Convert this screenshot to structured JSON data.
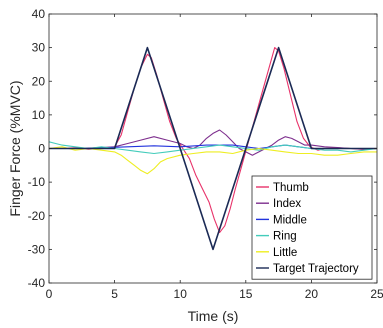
{
  "chart_data": {
    "type": "line",
    "title": "",
    "xlabel": "Time (s)",
    "ylabel": "Finger Force (%MVC)",
    "xlim": [
      0,
      25
    ],
    "ylim": [
      -40,
      40
    ],
    "xticks": [
      0,
      5,
      10,
      15,
      20,
      25
    ],
    "yticks": [
      -40,
      -30,
      -20,
      -10,
      0,
      10,
      20,
      30,
      40
    ],
    "xtick_labels": [
      "0",
      "5",
      "10",
      "15",
      "20",
      "25"
    ],
    "ytick_labels": [
      "-40",
      "-30",
      "-20",
      "-10",
      "0",
      "10",
      "20",
      "30",
      "40"
    ],
    "grid": false,
    "legend_position": "lower-right",
    "series": [
      {
        "name": "Thumb",
        "color": "#e8336a",
        "x": [
          0,
          1,
          2,
          3,
          4,
          5,
          5.5,
          6,
          6.5,
          7,
          7.5,
          7.8,
          8.2,
          8.7,
          9.2,
          9.7,
          10.2,
          10.7,
          11.2,
          11.7,
          12.2,
          12.6,
          13,
          13.4,
          13.8,
          14.2,
          14.7,
          15.2,
          15.7,
          16.2,
          16.7,
          17.2,
          17.5,
          17.9,
          18.4,
          18.9,
          19.4,
          19.9,
          20.5,
          21,
          22,
          23,
          24,
          25
        ],
        "y": [
          0,
          0,
          0.2,
          -0.2,
          0,
          0.5,
          4,
          11,
          18,
          24,
          28,
          27,
          22,
          15,
          8,
          3,
          0,
          -3,
          -8,
          -12,
          -16,
          -21,
          -25,
          -23,
          -18,
          -12,
          -5,
          2,
          9,
          16,
          23,
          30,
          29,
          24,
          16,
          8,
          3,
          0.5,
          -0.5,
          0,
          0.2,
          0,
          -0.3,
          0
        ]
      },
      {
        "name": "Index",
        "color": "#7e2f8e",
        "x": [
          0,
          2,
          4,
          5,
          6,
          7,
          8,
          9,
          10,
          10.5,
          11,
          11.5,
          12,
          12.5,
          13,
          13.5,
          14,
          14.5,
          15,
          15.5,
          16,
          16.5,
          17,
          17.5,
          18,
          18.5,
          19,
          19.5,
          20,
          21,
          22,
          23,
          24,
          25
        ],
        "y": [
          0,
          0,
          0.3,
          0.5,
          1.5,
          2.5,
          3.5,
          2.5,
          1.5,
          0.5,
          0,
          1,
          3,
          4.5,
          5.5,
          4,
          2,
          0,
          -1,
          -2,
          -1,
          0,
          1,
          2.5,
          3.5,
          3,
          2,
          1,
          1,
          0.5,
          0.3,
          0,
          -0.2,
          0
        ]
      },
      {
        "name": "Middle",
        "color": "#2233dd",
        "x": [
          0,
          2,
          4,
          6,
          8,
          10,
          12,
          14,
          15,
          16,
          17,
          18,
          19,
          20,
          22,
          25
        ],
        "y": [
          0,
          0,
          0.2,
          0.5,
          0.8,
          0.5,
          1,
          1,
          0.5,
          0,
          0.5,
          1,
          0.5,
          0,
          0,
          0
        ]
      },
      {
        "name": "Ring",
        "color": "#44ccbb",
        "x": [
          0,
          0.5,
          1,
          2,
          3,
          4,
          5,
          6,
          7,
          8,
          9,
          10,
          11,
          12,
          13,
          14,
          15,
          16,
          17,
          18,
          19,
          20,
          21,
          22,
          23,
          24,
          25
        ],
        "y": [
          2,
          1.5,
          1,
          0.5,
          0,
          0.5,
          0,
          -0.5,
          -1,
          -1.5,
          -1,
          -0.5,
          0,
          0.5,
          1,
          0.5,
          0,
          -0.5,
          0.5,
          1,
          0.5,
          0,
          -0.5,
          -0.5,
          -1,
          -0.5,
          0
        ]
      },
      {
        "name": "Little",
        "color": "#eeee22",
        "x": [
          0,
          1,
          2,
          3,
          4,
          5,
          5.5,
          6,
          6.5,
          7,
          7.5,
          8,
          8.5,
          9,
          10,
          11,
          12,
          13,
          14,
          15,
          16,
          17,
          18,
          19,
          20,
          21,
          22,
          23,
          24,
          25
        ],
        "y": [
          0,
          0.5,
          -0.5,
          0,
          -0.5,
          -1,
          -2,
          -3.5,
          -5,
          -6.5,
          -7.5,
          -6,
          -4,
          -3,
          -2,
          -1.5,
          -1,
          -1,
          -1.5,
          -0.5,
          0,
          -0.5,
          -1,
          -1.5,
          -1.5,
          -2,
          -2,
          -1.5,
          -1,
          -1
        ]
      },
      {
        "name": "Target Trajectory",
        "color": "#1b2a55",
        "x": [
          0,
          5,
          7.5,
          12.5,
          17.5,
          20,
          25
        ],
        "y": [
          0,
          0,
          30,
          -30,
          30,
          0,
          0
        ]
      }
    ]
  }
}
